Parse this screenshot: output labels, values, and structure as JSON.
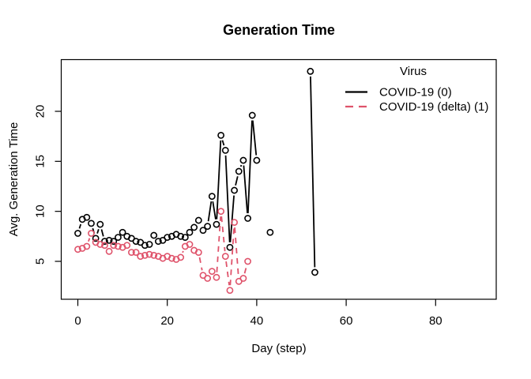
{
  "chart_data": {
    "type": "line",
    "title": "Generation Time",
    "xlabel": "Day (step)",
    "ylabel": "Avg. Generation Time",
    "x_ticks": [
      0,
      20,
      40,
      60,
      80
    ],
    "y_ticks": [
      5,
      10,
      15,
      20
    ],
    "xlim": [
      -4,
      94
    ],
    "ylim": [
      1.2,
      25.2
    ],
    "grid": false,
    "marker": "open-circle",
    "legend": {
      "title": "Virus",
      "position": "top-right"
    },
    "series": [
      {
        "name": "COVID-19 (0)",
        "color": "#000000",
        "dash": "solid",
        "points": [
          [
            0,
            7.8
          ],
          [
            1,
            9.2
          ],
          [
            2,
            9.4
          ],
          [
            3,
            8.8
          ],
          [
            4,
            7.3
          ],
          [
            5,
            8.7
          ],
          [
            6,
            7.0
          ],
          [
            7,
            7.1
          ],
          [
            8,
            7.0
          ],
          [
            9,
            7.4
          ],
          [
            10,
            7.9
          ],
          [
            11,
            7.5
          ],
          [
            12,
            7.3
          ],
          [
            13,
            7.0
          ],
          [
            14,
            6.9
          ],
          [
            15,
            6.6
          ],
          [
            16,
            6.7
          ],
          [
            17,
            7.6
          ],
          [
            18,
            7.0
          ],
          [
            19,
            7.1
          ],
          [
            20,
            7.4
          ],
          [
            21,
            7.5
          ],
          [
            22,
            7.7
          ],
          [
            23,
            7.5
          ],
          [
            24,
            7.4
          ],
          [
            25,
            7.9
          ],
          [
            26,
            8.4
          ],
          [
            27,
            9.1
          ],
          [
            28,
            8.1
          ],
          [
            29,
            8.5
          ],
          [
            30,
            11.5
          ],
          [
            31,
            8.7
          ],
          [
            32,
            17.6
          ],
          [
            33,
            16.1
          ],
          [
            34,
            6.4
          ],
          [
            35,
            12.1
          ],
          [
            36,
            14.0
          ],
          [
            37,
            15.1
          ],
          [
            38,
            9.3
          ],
          [
            39,
            19.6
          ],
          [
            40,
            15.1
          ],
          [
            43,
            7.9
          ],
          [
            52,
            24.0
          ],
          [
            53,
            3.9
          ]
        ]
      },
      {
        "name": "COVID-19 (delta) (1)",
        "color": "#DF536B",
        "dash": "dashed",
        "points": [
          [
            0,
            6.2
          ],
          [
            1,
            6.3
          ],
          [
            2,
            6.5
          ],
          [
            3,
            7.8
          ],
          [
            4,
            6.9
          ],
          [
            5,
            6.7
          ],
          [
            6,
            6.6
          ],
          [
            7,
            6.0
          ],
          [
            8,
            6.6
          ],
          [
            9,
            6.5
          ],
          [
            10,
            6.4
          ],
          [
            11,
            6.6
          ],
          [
            12,
            5.9
          ],
          [
            13,
            5.9
          ],
          [
            14,
            5.5
          ],
          [
            15,
            5.6
          ],
          [
            16,
            5.7
          ],
          [
            17,
            5.6
          ],
          [
            18,
            5.5
          ],
          [
            19,
            5.3
          ],
          [
            20,
            5.5
          ],
          [
            21,
            5.3
          ],
          [
            22,
            5.2
          ],
          [
            23,
            5.4
          ],
          [
            24,
            6.5
          ],
          [
            25,
            6.7
          ],
          [
            26,
            6.1
          ],
          [
            27,
            5.9
          ],
          [
            28,
            3.6
          ],
          [
            29,
            3.3
          ],
          [
            30,
            4.0
          ],
          [
            31,
            3.4
          ],
          [
            32,
            10.0
          ],
          [
            33,
            5.5
          ],
          [
            34,
            2.1
          ],
          [
            35,
            8.9
          ],
          [
            36,
            3.0
          ],
          [
            37,
            3.3
          ],
          [
            38,
            5.0
          ]
        ]
      }
    ]
  }
}
